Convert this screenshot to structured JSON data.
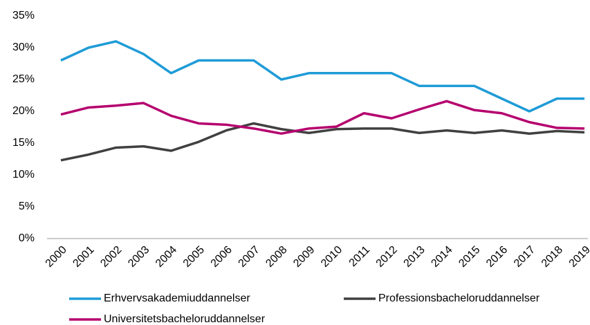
{
  "chart_data": {
    "type": "line",
    "categories": [
      "2000",
      "2001",
      "2002",
      "2003",
      "2004",
      "2005",
      "2006",
      "2007",
      "2008",
      "2009",
      "2010",
      "2011",
      "2012",
      "2013",
      "2014",
      "2015",
      "2016",
      "2017",
      "2018",
      "2019"
    ],
    "series": [
      {
        "name": "Erhvervsakademiuddannelser",
        "color": "#1e9bd7",
        "values": [
          28,
          30,
          31,
          29,
          26,
          28,
          28,
          28,
          25,
          26,
          26,
          26,
          26,
          24,
          24,
          24,
          22,
          20,
          22,
          22
        ]
      },
      {
        "name": "Professionsbacheloruddannelser",
        "color": "#404040",
        "values": [
          12.3,
          13.2,
          14.3,
          14.5,
          13.8,
          15.2,
          17.0,
          18.1,
          17.2,
          16.6,
          17.2,
          17.3,
          17.3,
          16.6,
          17.0,
          16.6,
          17.0,
          16.5,
          16.9,
          16.7
        ]
      },
      {
        "name": "Universitetsbacheloruddannelser",
        "color": "#b5006e",
        "values": [
          19.5,
          20.6,
          20.9,
          21.3,
          19.3,
          18.1,
          17.9,
          17.3,
          16.5,
          17.3,
          17.6,
          19.7,
          18.9,
          20.3,
          21.6,
          20.2,
          19.7,
          18.3,
          17.4,
          17.3
        ]
      }
    ],
    "ylim": [
      0,
      35
    ],
    "yticks": [
      {
        "value": 0,
        "label": "0%"
      },
      {
        "value": 5,
        "label": "5%"
      },
      {
        "value": 10,
        "label": "10%"
      },
      {
        "value": 15,
        "label": "15%"
      },
      {
        "value": 20,
        "label": "20%"
      },
      {
        "value": 25,
        "label": "25%"
      },
      {
        "value": 30,
        "label": "30%"
      },
      {
        "value": 35,
        "label": "35%"
      }
    ],
    "grid": false
  }
}
